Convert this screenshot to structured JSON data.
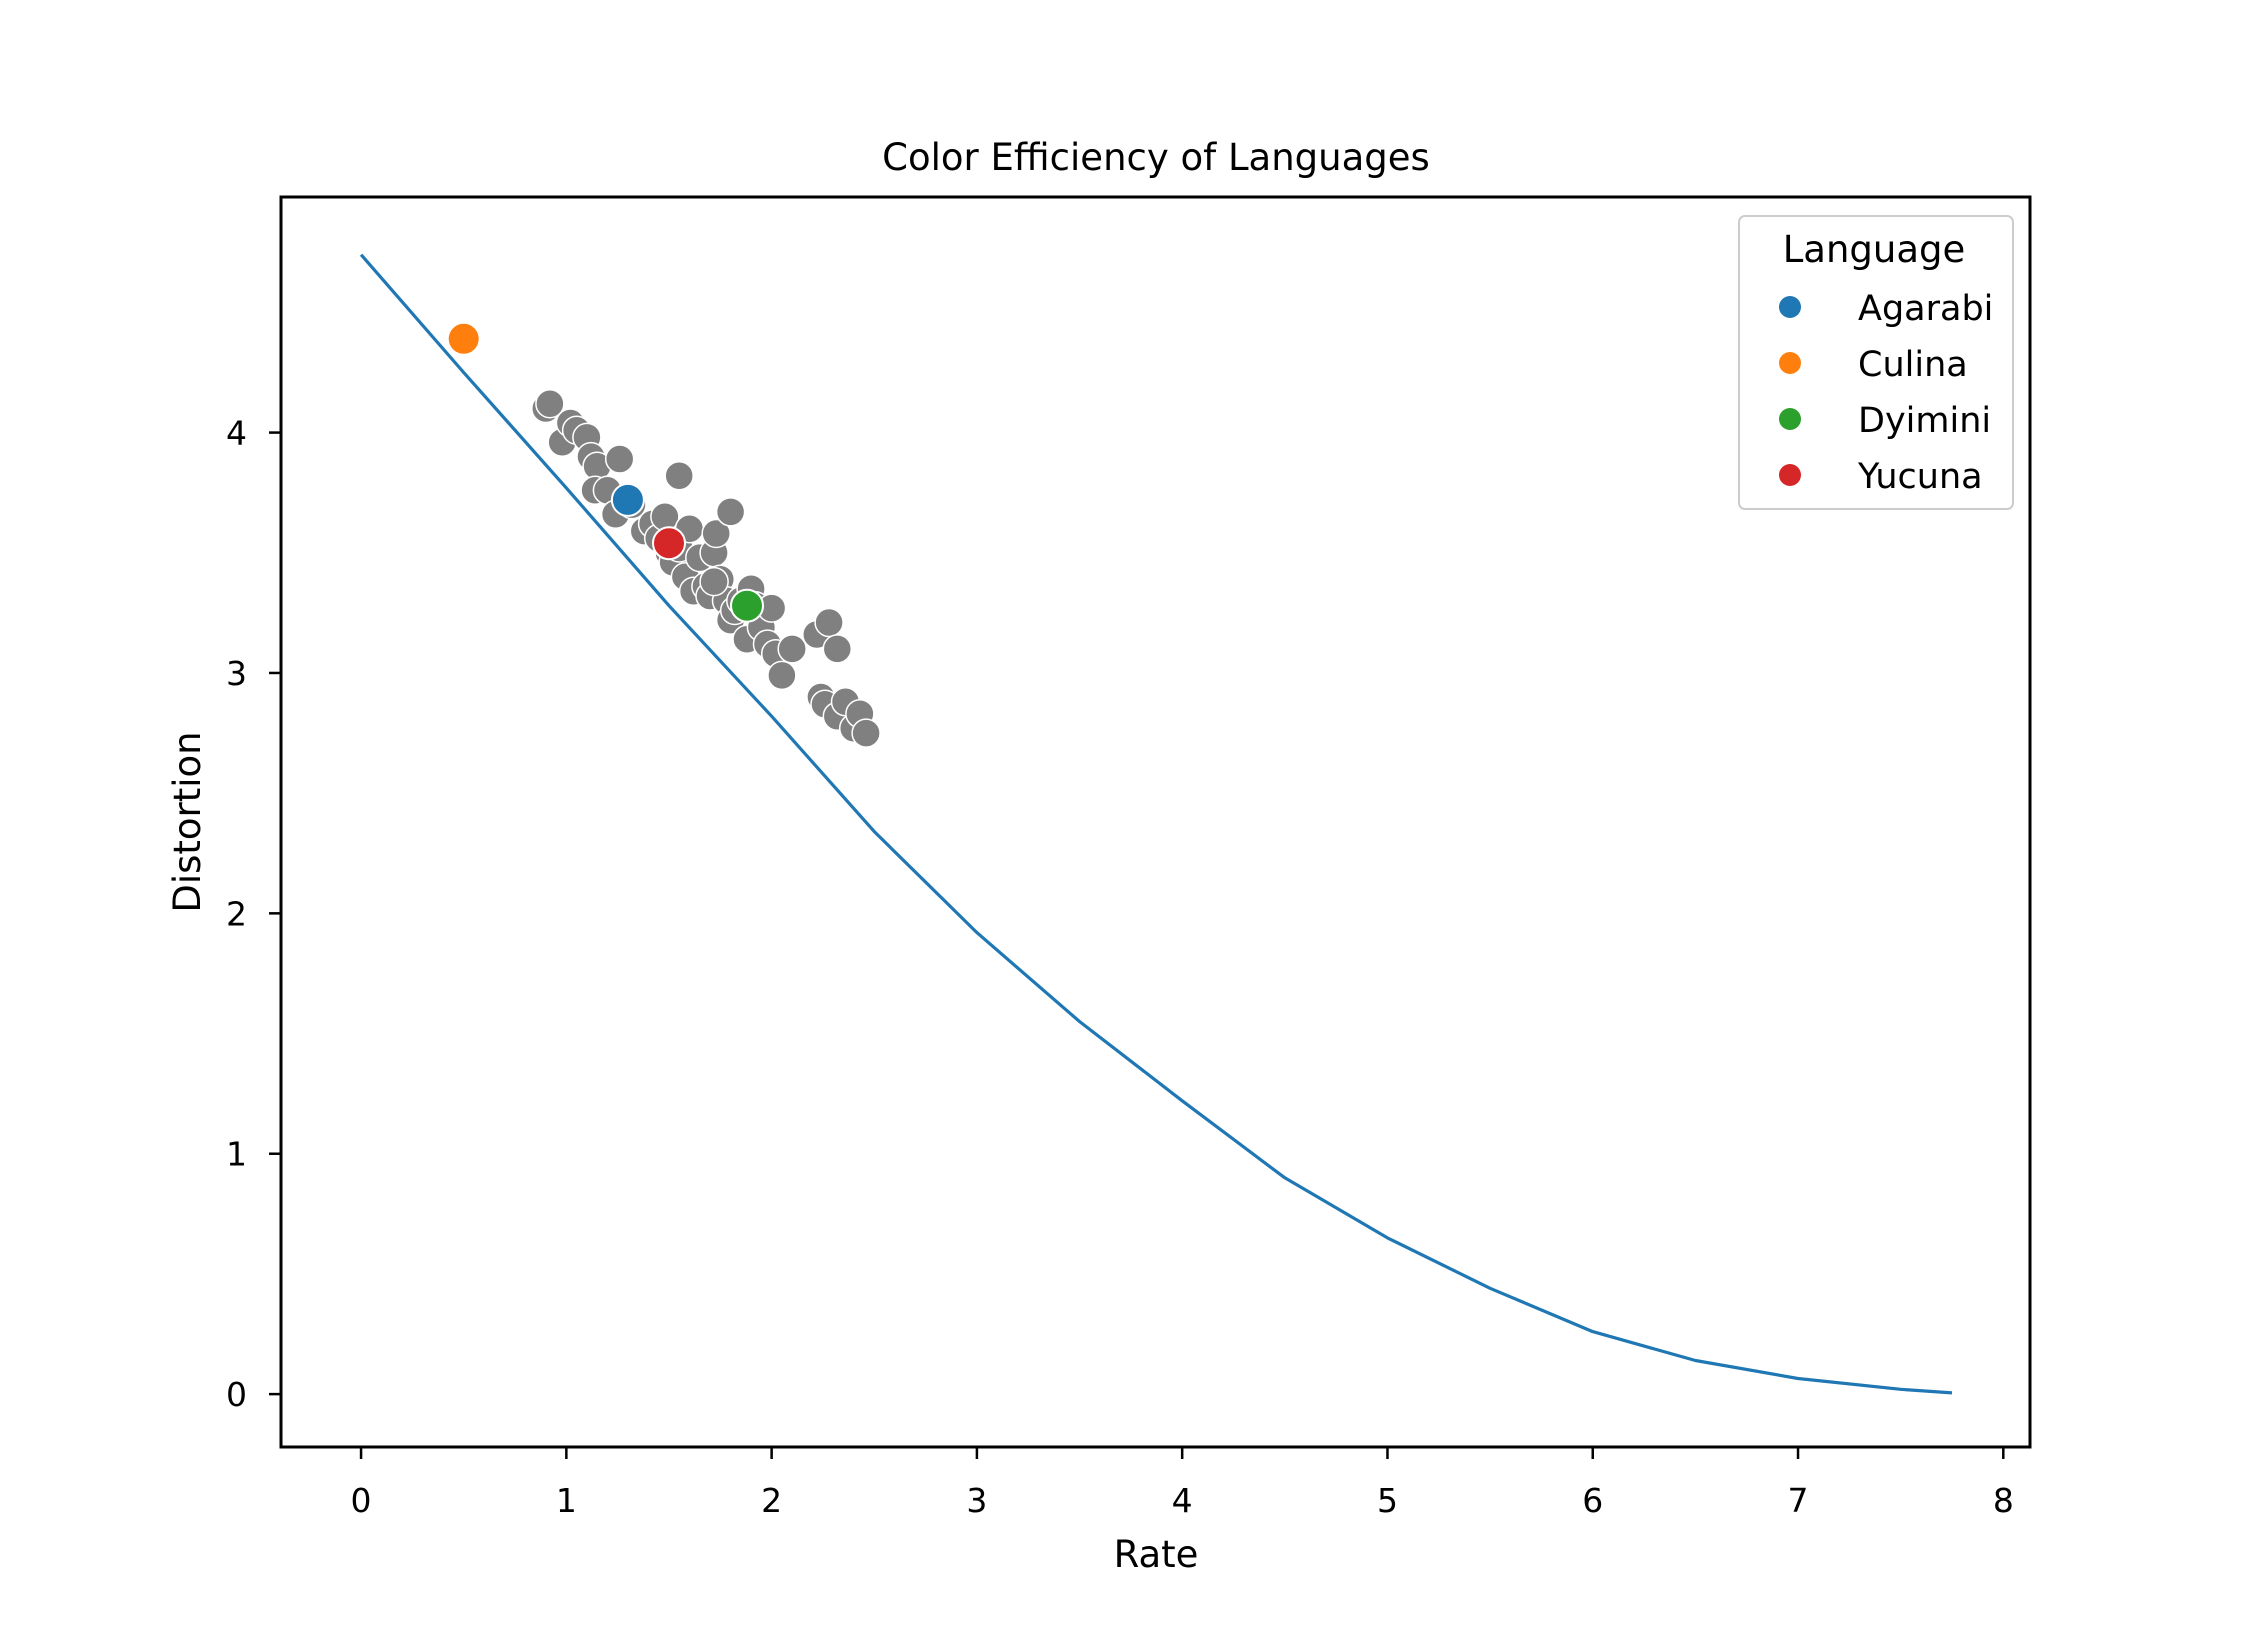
{
  "chart_data": {
    "type": "scatter",
    "title": "Color Efficiency of Languages",
    "xlabel": "Rate",
    "ylabel": "Distortion",
    "xlim": [
      -0.39,
      8.13
    ],
    "ylim": [
      -0.22,
      4.98
    ],
    "xticks": [
      0,
      1,
      2,
      3,
      4,
      5,
      6,
      7,
      8
    ],
    "yticks": [
      0,
      1,
      2,
      3,
      4
    ],
    "grid": false,
    "legend": {
      "title": "Language",
      "placement": "top-right",
      "entries": [
        "Agarabi",
        "Culina",
        "Dyimini",
        "Yucuna"
      ]
    },
    "curve": {
      "color": "#1f77b4",
      "x": [
        0.0,
        0.5,
        1.0,
        1.5,
        2.0,
        2.5,
        3.0,
        3.5,
        4.0,
        4.5,
        5.0,
        5.5,
        6.0,
        6.5,
        7.0,
        7.5,
        7.75
      ],
      "y": [
        4.74,
        4.25,
        3.77,
        3.28,
        2.82,
        2.34,
        1.92,
        1.55,
        1.22,
        0.9,
        0.65,
        0.44,
        0.26,
        0.14,
        0.065,
        0.02,
        0.005
      ]
    },
    "background_points": {
      "color": "#808080",
      "x": [
        0.9,
        0.92,
        0.98,
        1.02,
        1.05,
        1.1,
        1.12,
        1.15,
        1.14,
        1.2,
        1.24,
        1.26,
        1.3,
        1.32,
        1.38,
        1.42,
        1.45,
        1.48,
        1.5,
        1.52,
        1.55,
        1.58,
        1.6,
        1.62,
        1.65,
        1.68,
        1.7,
        1.72,
        1.73,
        1.75,
        1.78,
        1.8,
        1.82,
        1.85,
        1.88,
        1.9,
        1.92,
        1.95,
        1.98,
        2.0,
        2.02,
        2.05,
        2.1,
        1.55,
        1.8,
        1.72,
        2.22,
        2.28,
        2.32,
        2.24,
        2.26,
        2.32,
        2.36,
        2.4,
        2.43,
        2.46
      ],
      "y": [
        4.1,
        4.12,
        3.96,
        4.04,
        4.01,
        3.98,
        3.9,
        3.86,
        3.76,
        3.76,
        3.66,
        3.89,
        3.71,
        3.7,
        3.59,
        3.62,
        3.56,
        3.65,
        3.5,
        3.46,
        3.52,
        3.4,
        3.6,
        3.34,
        3.48,
        3.36,
        3.32,
        3.5,
        3.58,
        3.39,
        3.3,
        3.22,
        3.26,
        3.3,
        3.14,
        3.35,
        3.28,
        3.19,
        3.12,
        3.27,
        3.08,
        2.99,
        3.1,
        3.82,
        3.67,
        3.38,
        3.16,
        3.21,
        3.1,
        2.9,
        2.87,
        2.82,
        2.88,
        2.77,
        2.83,
        2.75
      ]
    },
    "series": [
      {
        "name": "Agarabi",
        "color": "#1f77b4",
        "x": [
          1.3
        ],
        "y": [
          3.72
        ]
      },
      {
        "name": "Culina",
        "color": "#ff7f0e",
        "x": [
          0.5
        ],
        "y": [
          4.39
        ]
      },
      {
        "name": "Dyimini",
        "color": "#2ca02c",
        "x": [
          1.88
        ],
        "y": [
          3.28
        ]
      },
      {
        "name": "Yucuna",
        "color": "#d62728",
        "x": [
          1.5
        ],
        "y": [
          3.54
        ]
      }
    ]
  }
}
